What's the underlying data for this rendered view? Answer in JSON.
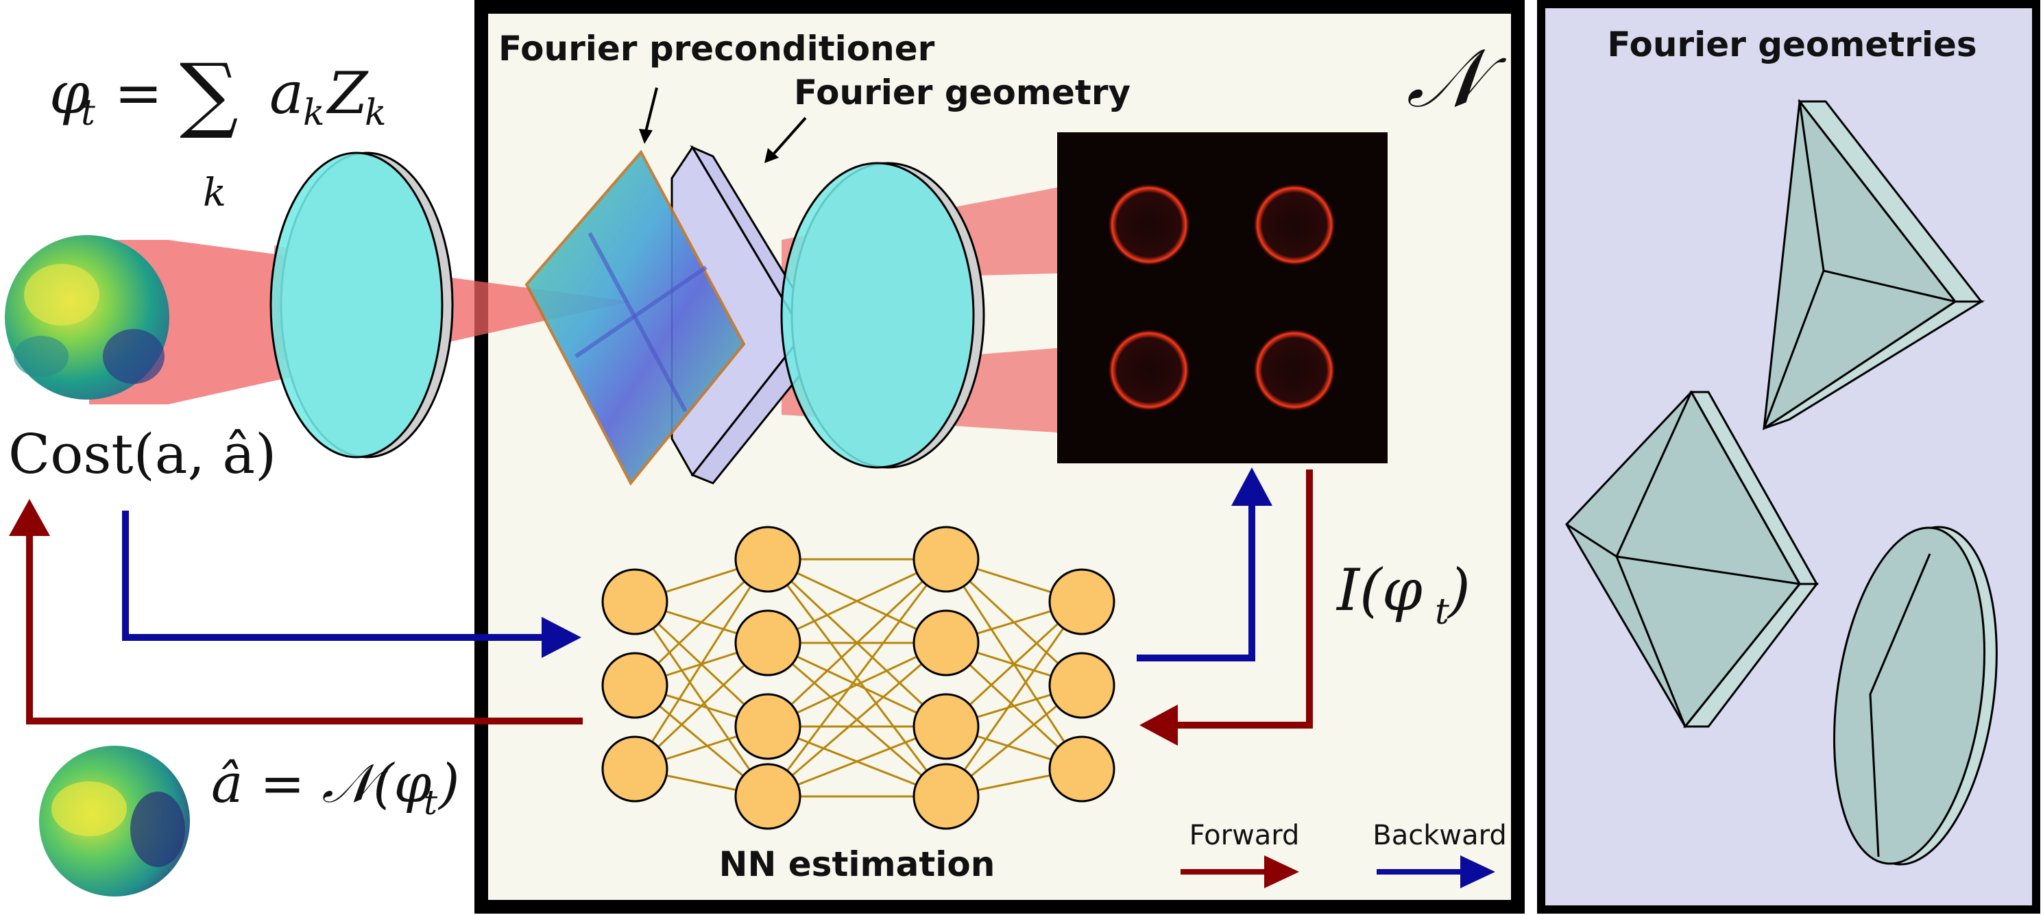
{
  "labels": {
    "fourier_preconditioner": "Fourier preconditioner",
    "fourier_geometry": "Fourier geometry",
    "fourier_geometries": "Fourier geometries",
    "nn_estimation": "NN estimation",
    "forward": "Forward",
    "backward": "Backward",
    "network_symbol": "𝒩"
  },
  "math": {
    "phi_lhs": "φ",
    "phi_sub": "t",
    "phi_eq": " = ",
    "sum_sign": "∑",
    "sum_index": "k",
    "coef": "a",
    "coef_sub": "k",
    "zern": "Z",
    "zern_sub": "k",
    "cost": "Cost(a, â)",
    "intensity_pre": "I(φ",
    "intensity_sub": "t",
    "intensity_post": ")",
    "estimate_pre": "â = 𝒩(φ",
    "estimate_sub": "t",
    "estimate_post": ")"
  },
  "colors": {
    "forward_arrow": "#8b0000",
    "backward_arrow": "#0a0a9c",
    "panel_center": "#f7f7ee",
    "panel_right": "#d9d9f0",
    "lens": "#73eae6",
    "node": "#fbc56a",
    "edge": "#b8860b",
    "beam": "#f06262",
    "geometry_solid": "#a9c9c9"
  },
  "network": {
    "layers": [
      3,
      4,
      4,
      3
    ]
  }
}
